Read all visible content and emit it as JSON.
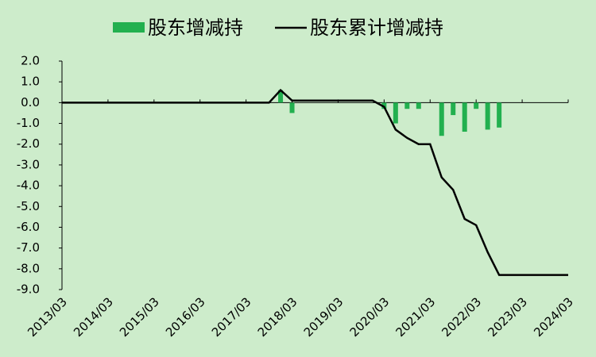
{
  "chart_data": {
    "type": "bar-line",
    "categories": [
      "2013/03",
      null,
      null,
      null,
      "2014/03",
      null,
      null,
      null,
      "2015/03",
      null,
      null,
      null,
      "2016/03",
      null,
      null,
      null,
      "2017/03",
      null,
      null,
      null,
      "2018/03",
      null,
      null,
      null,
      "2019/03",
      null,
      null,
      null,
      "2020/03",
      null,
      null,
      null,
      "2021/03",
      null,
      null,
      null,
      "2022/03",
      null,
      null,
      null,
      "2023/03",
      null,
      null,
      null,
      "2024/03"
    ],
    "series": [
      {
        "name": "股东增减持",
        "type": "bar",
        "color": "#22b04f",
        "values": [
          null,
          null,
          null,
          null,
          null,
          null,
          null,
          null,
          null,
          null,
          null,
          null,
          null,
          null,
          null,
          null,
          null,
          null,
          null,
          0.6,
          -0.5,
          null,
          null,
          null,
          null,
          null,
          null,
          null,
          -0.3,
          -1.0,
          -0.3,
          -0.3,
          null,
          -1.6,
          -0.6,
          -1.4,
          -0.3,
          -1.3,
          -1.2,
          null,
          null,
          null,
          null,
          null,
          null
        ]
      },
      {
        "name": "股东累计增减持",
        "type": "line",
        "color": "#000000",
        "values": [
          0,
          0,
          0,
          0,
          0,
          0,
          0,
          0,
          0,
          0,
          0,
          0,
          0,
          0,
          0,
          0,
          0,
          0,
          0,
          0.6,
          0.1,
          0.1,
          0.1,
          0.1,
          0.1,
          0.1,
          0.1,
          0.1,
          -0.2,
          -1.3,
          -1.7,
          -2.0,
          -2.0,
          -3.6,
          -4.2,
          -5.6,
          -5.9,
          -7.2,
          -8.3,
          -8.3,
          -8.3,
          -8.3,
          -8.3,
          -8.3,
          -8.3
        ]
      }
    ],
    "ylim": [
      -9,
      2
    ],
    "yticks": [
      {
        "value": 2,
        "label": "2.0"
      },
      {
        "value": 1,
        "label": "1.0"
      },
      {
        "value": 0,
        "label": "0.0"
      },
      {
        "value": -1,
        "label": "-1.0"
      },
      {
        "value": -2,
        "label": "-2.0"
      },
      {
        "value": -3,
        "label": "-3.0"
      },
      {
        "value": -4,
        "label": "-4.0"
      },
      {
        "value": -5,
        "label": "-5.0"
      },
      {
        "value": -6,
        "label": "-6.0"
      },
      {
        "value": -7,
        "label": "-7.0"
      },
      {
        "value": -8,
        "label": "-8.0"
      },
      {
        "value": -9,
        "label": "-9.0"
      }
    ],
    "legend": "top",
    "grid": false
  }
}
